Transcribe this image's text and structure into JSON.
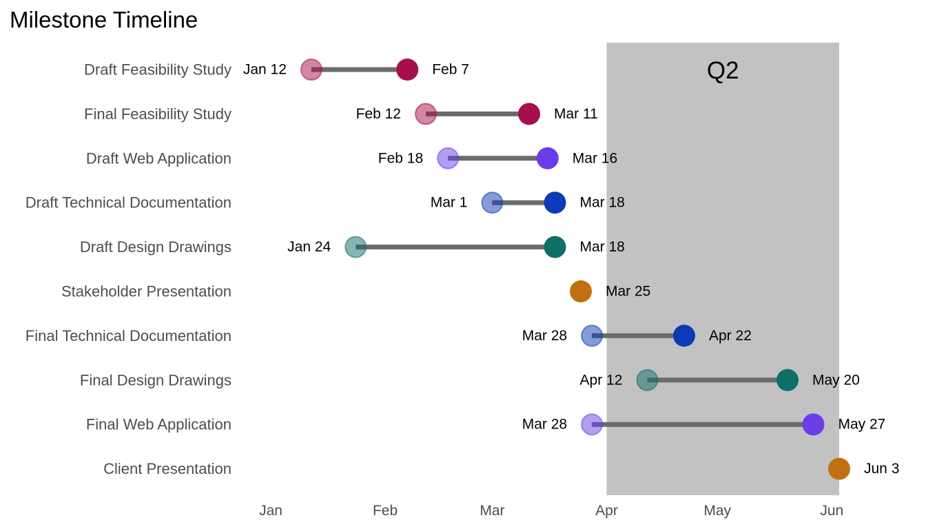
{
  "chart_data": {
    "type": "dumbbell",
    "title": "Milestone Timeline",
    "xlabel": "",
    "ylabel": "",
    "year": 2024,
    "xlim": [
      "2024-01-01",
      "2024-06-03"
    ],
    "x_ticks": [
      {
        "date": "2024-01-01",
        "label": "Jan"
      },
      {
        "date": "2024-02-01",
        "label": "Feb"
      },
      {
        "date": "2024-03-01",
        "label": "Mar"
      },
      {
        "date": "2024-04-01",
        "label": "Apr"
      },
      {
        "date": "2024-05-01",
        "label": "May"
      },
      {
        "date": "2024-06-01",
        "label": "Jun"
      }
    ],
    "grid": false,
    "highlight_band": {
      "label": "Q2",
      "start": "2024-04-01",
      "end": "2024-06-03",
      "color": "#c2c2c2"
    },
    "connector_color": "#6b6b6b",
    "milestones": [
      {
        "name": "Draft Feasibility Study",
        "start": "2024-01-12",
        "end": "2024-02-07",
        "start_label": "Jan 12",
        "end_label": "Feb 7",
        "color": "#a50f4b"
      },
      {
        "name": "Final Feasibility Study",
        "start": "2024-02-12",
        "end": "2024-03-11",
        "start_label": "Feb 12",
        "end_label": "Mar 11",
        "color": "#a50f4b"
      },
      {
        "name": "Draft Web Application",
        "start": "2024-02-18",
        "end": "2024-03-16",
        "start_label": "Feb 18",
        "end_label": "Mar 16",
        "color": "#6a3de8"
      },
      {
        "name": "Draft Technical Documentation",
        "start": "2024-03-01",
        "end": "2024-03-18",
        "start_label": "Mar 1",
        "end_label": "Mar 18",
        "color": "#0d3ab5"
      },
      {
        "name": "Draft Design Drawings",
        "start": "2024-01-24",
        "end": "2024-03-18",
        "start_label": "Jan 24",
        "end_label": "Mar 18",
        "color": "#0e6e68"
      },
      {
        "name": "Stakeholder Presentation",
        "start": null,
        "end": "2024-03-25",
        "start_label": "",
        "end_label": "Mar 25",
        "color": "#c0700f"
      },
      {
        "name": "Final Technical Documentation",
        "start": "2024-03-28",
        "end": "2024-04-22",
        "start_label": "Mar 28",
        "end_label": "Apr 22",
        "color": "#0d3ab5"
      },
      {
        "name": "Final Design Drawings",
        "start": "2024-04-12",
        "end": "2024-05-20",
        "start_label": "Apr 12",
        "end_label": "May 20",
        "color": "#0e6e68"
      },
      {
        "name": "Final Web Application",
        "start": "2024-03-28",
        "end": "2024-05-27",
        "start_label": "Mar 28",
        "end_label": "May 27",
        "color": "#6a3de8"
      },
      {
        "name": "Client Presentation",
        "start": null,
        "end": "2024-06-03",
        "start_label": "",
        "end_label": "Jun 3",
        "color": "#c0700f"
      }
    ]
  }
}
